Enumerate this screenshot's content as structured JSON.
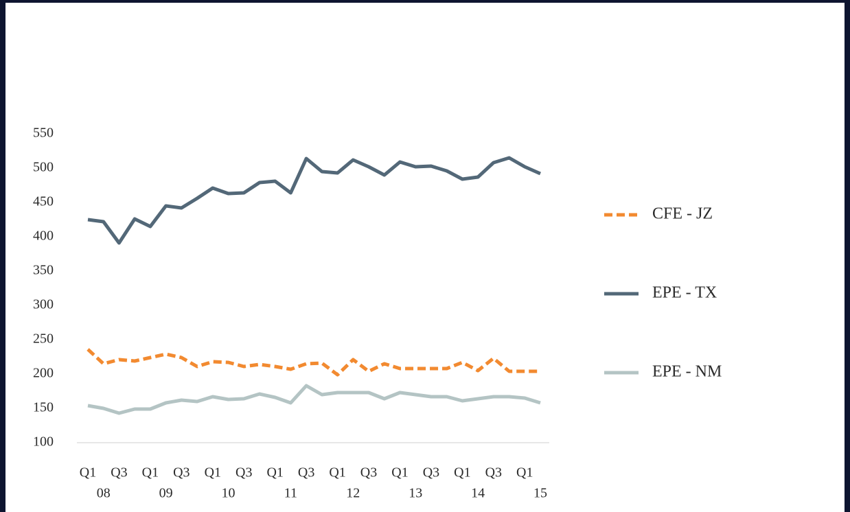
{
  "chart_data": {
    "type": "line",
    "categories": [
      "Q1",
      null,
      "Q3",
      null,
      "Q1",
      null,
      "Q3",
      null,
      "Q1",
      null,
      "Q3",
      null,
      "Q1",
      null,
      "Q3",
      null,
      "Q1",
      null,
      "Q3",
      null,
      "Q1",
      null,
      "Q3",
      null,
      "Q1",
      null,
      "Q3",
      null,
      "Q1",
      null
    ],
    "year_labels": [
      "08",
      "09",
      "10",
      "11",
      "12",
      "13",
      "14",
      "15"
    ],
    "series": [
      {
        "name": "CFE - JZ",
        "color": "#f28a30",
        "dashed": true,
        "values": [
          236,
          215,
          221,
          219,
          224,
          229,
          224,
          211,
          218,
          217,
          211,
          214,
          211,
          207,
          215,
          216,
          199,
          221,
          204,
          215,
          208,
          208,
          208,
          208,
          217,
          205,
          223,
          204,
          204,
          204
        ]
      },
      {
        "name": "EPE - TX",
        "color": "#536878",
        "dashed": false,
        "values": [
          425,
          422,
          391,
          426,
          415,
          445,
          442,
          456,
          471,
          463,
          464,
          479,
          481,
          464,
          514,
          495,
          493,
          512,
          502,
          490,
          509,
          502,
          503,
          496,
          484,
          487,
          508,
          515,
          502,
          492
        ]
      },
      {
        "name": "EPE - NM",
        "color": "#b4c4c4",
        "dashed": false,
        "values": [
          154,
          150,
          143,
          149,
          149,
          158,
          162,
          160,
          167,
          163,
          164,
          171,
          166,
          158,
          183,
          170,
          173,
          173,
          173,
          164,
          173,
          170,
          167,
          167,
          161,
          164,
          167,
          167,
          165,
          158
        ]
      }
    ],
    "ylim": [
      100,
      550
    ],
    "yticks": [
      100,
      150,
      200,
      250,
      300,
      350,
      400,
      450,
      500,
      550
    ],
    "grid": false
  }
}
